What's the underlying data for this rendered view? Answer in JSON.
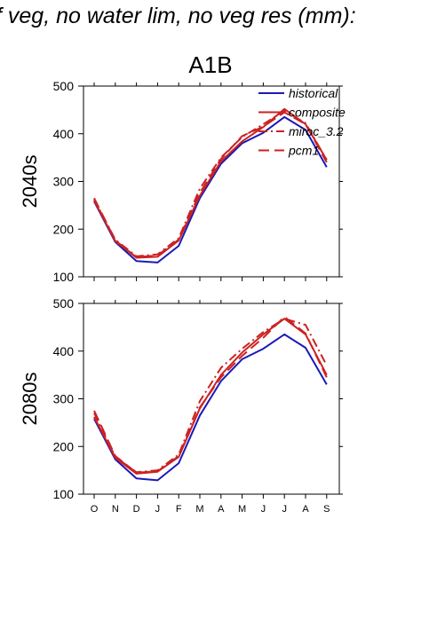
{
  "header": {
    "title": "f veg, no water lim, no veg res (mm):"
  },
  "chart_data": {
    "type": "line",
    "title": "A1B",
    "months": [
      "O",
      "N",
      "D",
      "J",
      "F",
      "M",
      "A",
      "M",
      "J",
      "J",
      "A",
      "S"
    ],
    "ylim": [
      100,
      500
    ],
    "yticks": [
      100,
      200,
      300,
      400,
      500
    ],
    "legend": {
      "placement": "top-right",
      "entries": [
        "historical",
        "composite",
        "miroc_3.2",
        "pcm1"
      ]
    },
    "series_styles": [
      {
        "name": "historical",
        "color": "#1a1ab8",
        "dash": ""
      },
      {
        "name": "composite",
        "color": "#cc2222",
        "dash": ""
      },
      {
        "name": "miroc_3.2",
        "color": "#cc2222",
        "dash": "10 4 2 4"
      },
      {
        "name": "pcm1",
        "color": "#cc2222",
        "dash": "12 6"
      }
    ],
    "panels": [
      {
        "ylabel": "2040s",
        "series": [
          {
            "name": "historical",
            "values": [
              258,
              173,
              133,
              130,
              165,
              265,
              337,
              380,
              402,
              435,
              408,
              330
            ]
          },
          {
            "name": "composite",
            "values": [
              260,
              175,
              140,
              142,
              176,
              270,
              342,
              384,
              414,
              452,
              420,
              345
            ]
          },
          {
            "name": "miroc_3.2",
            "values": [
              263,
              178,
              143,
              147,
              181,
              285,
              350,
              393,
              420,
              448,
              422,
              345
            ]
          },
          {
            "name": "pcm1",
            "values": [
              265,
              176,
              141,
              145,
              178,
              276,
              347,
              395,
              415,
              445,
              420,
              340
            ]
          }
        ]
      },
      {
        "ylabel": "2080s",
        "series": [
          {
            "name": "historical",
            "values": [
              258,
              173,
              133,
              129,
              165,
              265,
              337,
              383,
              405,
              435,
              407,
              330
            ]
          },
          {
            "name": "composite",
            "values": [
              262,
              176,
              143,
              147,
              178,
              280,
              350,
              397,
              435,
              468,
              435,
              350
            ]
          },
          {
            "name": "miroc_3.2",
            "values": [
              270,
              178,
              146,
              150,
              183,
              295,
              365,
              405,
              440,
              468,
              455,
              370
            ]
          },
          {
            "name": "pcm1",
            "values": [
              275,
              180,
              145,
              148,
              180,
              282,
              345,
              390,
              428,
              472,
              437,
              345
            ]
          }
        ]
      }
    ]
  }
}
